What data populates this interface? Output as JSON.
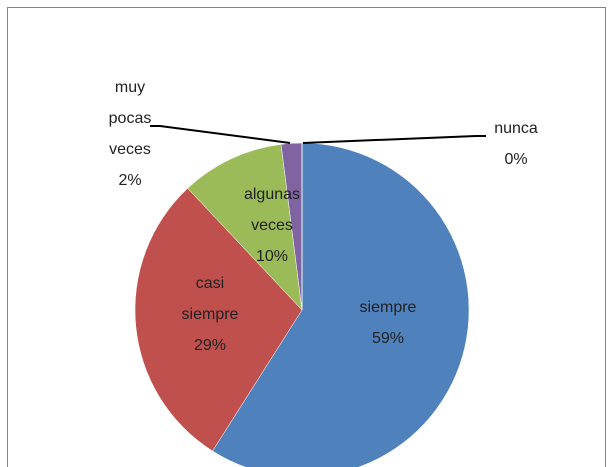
{
  "chart_data": {
    "type": "pie",
    "categories": [
      "siempre",
      "casi siempre",
      "algunas veces",
      "muy pocas veces",
      "nunca"
    ],
    "values": [
      59,
      29,
      10,
      2,
      0
    ],
    "value_labels": [
      "59%",
      "29%",
      "10%",
      "2%",
      "0%"
    ],
    "colors": [
      "#4f81bd",
      "#c0504d",
      "#9bbb59",
      "#8064a2",
      "#4bacc6"
    ]
  }
}
